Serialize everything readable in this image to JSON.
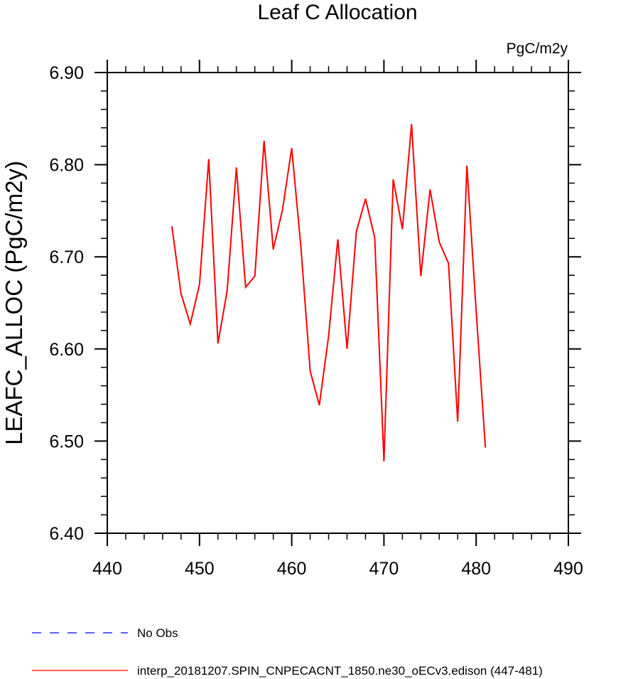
{
  "chart_data": {
    "type": "line",
    "title": "Leaf C Allocation",
    "units": "PgC/m2y",
    "ylabel": "LEAFC_ALLOC  (PgC/m2y)",
    "xlabel": "",
    "xlim": [
      440,
      490
    ],
    "ylim": [
      6.4,
      6.9
    ],
    "x_ticks": [
      440,
      450,
      460,
      470,
      480,
      490
    ],
    "x_tick_labels": [
      "440",
      "450",
      "460",
      "470",
      "480",
      "490"
    ],
    "y_ticks": [
      6.4,
      6.5,
      6.6,
      6.7,
      6.8,
      6.9
    ],
    "y_tick_labels": [
      "6.40",
      "6.50",
      "6.60",
      "6.70",
      "6.80",
      "6.90"
    ],
    "grid": false,
    "legend_position": "bottom",
    "series": [
      {
        "name": "interp_20181207.SPIN_CNPECACNT_1850.ne30_oECv3.edison (447-481)",
        "color": "#ff0000",
        "style": "solid",
        "x": [
          447,
          448,
          449,
          450,
          451,
          452,
          453,
          454,
          455,
          456,
          457,
          458,
          459,
          460,
          461,
          462,
          463,
          464,
          465,
          466,
          467,
          468,
          469,
          470,
          471,
          472,
          473,
          474,
          475,
          476,
          477,
          478,
          479,
          480,
          481
        ],
        "values": [
          6.733,
          6.66,
          6.627,
          6.67,
          6.806,
          6.606,
          6.663,
          6.797,
          6.667,
          6.679,
          6.826,
          6.708,
          6.751,
          6.818,
          6.71,
          6.576,
          6.539,
          6.614,
          6.719,
          6.6,
          6.727,
          6.763,
          6.721,
          6.478,
          6.784,
          6.73,
          6.844,
          6.679,
          6.773,
          6.716,
          6.693,
          6.521,
          6.799,
          6.641,
          6.493
        ]
      }
    ],
    "legend": [
      {
        "label": "No Obs",
        "color": "#0000ff",
        "style": "dashed"
      },
      {
        "label": "interp_20181207.SPIN_CNPECACNT_1850.ne30_oECv3.edison (447-481)",
        "color": "#ff0000",
        "style": "solid"
      }
    ]
  }
}
